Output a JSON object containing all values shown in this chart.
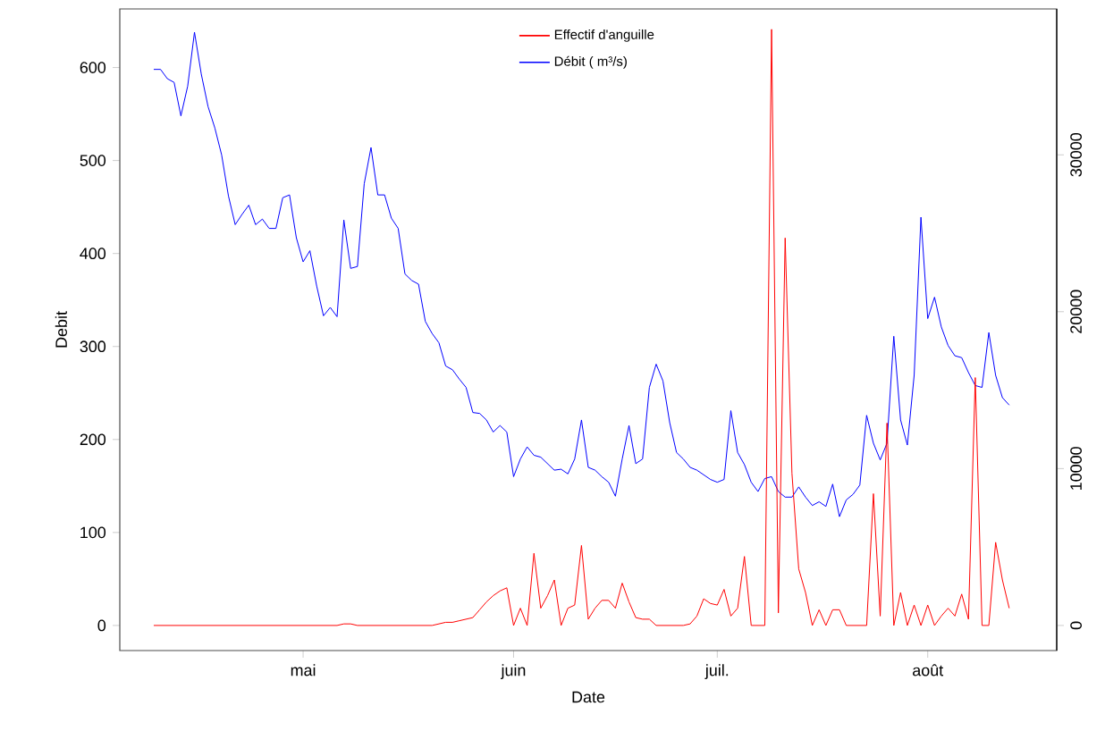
{
  "chart_data": {
    "type": "line",
    "xlabel": "Date",
    "ylabel": "Debit",
    "legend": "top",
    "categories": [
      null,
      null,
      null,
      null,
      null,
      null,
      null,
      null,
      null,
      null,
      null,
      null,
      null,
      null,
      null,
      null,
      null,
      null,
      null,
      null,
      null,
      null,
      "mai",
      null,
      null,
      null,
      null,
      null,
      null,
      null,
      null,
      null,
      null,
      null,
      null,
      null,
      null,
      null,
      null,
      null,
      null,
      null,
      null,
      null,
      null,
      null,
      null,
      null,
      null,
      null,
      null,
      null,
      null,
      "juin",
      null,
      null,
      null,
      null,
      null,
      null,
      null,
      null,
      null,
      null,
      null,
      null,
      null,
      null,
      null,
      null,
      null,
      null,
      null,
      null,
      null,
      null,
      null,
      null,
      null,
      null,
      null,
      null,
      null,
      "juil.",
      null,
      null,
      null,
      null,
      null,
      null,
      null,
      null,
      null,
      null,
      null,
      null,
      null,
      null,
      null,
      null,
      null,
      null,
      null,
      null,
      null,
      null,
      null,
      null,
      null,
      null,
      null,
      null,
      null,
      null,
      "août",
      null,
      null,
      null,
      null,
      null,
      null,
      null,
      null,
      null,
      null,
      null,
      null
    ],
    "series": [
      {
        "name": "Effectif d'anguille",
        "color": "#ff0000",
        "axis": "y2",
        "values": [
          0,
          0,
          0,
          0,
          0,
          0,
          0,
          0,
          0,
          0,
          0,
          0,
          0,
          0,
          0,
          0,
          0,
          0,
          0,
          0,
          0,
          0,
          0,
          0,
          0,
          0,
          0,
          0,
          100,
          100,
          0,
          0,
          0,
          0,
          0,
          0,
          0,
          0,
          0,
          0,
          0,
          0,
          100,
          200,
          200,
          300,
          400,
          500,
          1000,
          1500,
          1900,
          2200,
          2400,
          0,
          1100,
          0,
          4600,
          1100,
          1900,
          2900,
          0,
          1100,
          1300,
          5100,
          400,
          1100,
          1600,
          1600,
          1100,
          2700,
          1500,
          500,
          400,
          400,
          0,
          0,
          0,
          0,
          0,
          100,
          600,
          1700,
          1400,
          1300,
          2300,
          600,
          1100,
          4400,
          0,
          0,
          0,
          38000,
          800,
          24700,
          9700,
          3600,
          2100,
          0,
          1000,
          0,
          1000,
          1000,
          0,
          0,
          0,
          0,
          8400,
          600,
          12900,
          0,
          2100,
          0,
          1300,
          0,
          1300,
          0,
          600,
          1100,
          600,
          2000,
          400,
          15800,
          0,
          0,
          5300,
          2900,
          1100
        ]
      },
      {
        "name": "Débit ( m³/s)",
        "color": "#0000ff",
        "values": [
          598,
          598,
          588,
          584,
          548,
          580,
          638,
          593,
          558,
          535,
          506,
          462,
          431,
          442,
          452,
          431,
          437,
          427,
          427,
          460,
          463,
          417,
          391,
          403,
          365,
          333,
          342,
          332,
          436,
          384,
          386,
          475,
          514,
          463,
          463,
          438,
          427,
          378,
          371,
          367,
          327,
          314,
          304,
          279,
          275,
          265,
          256,
          229,
          228,
          221,
          208,
          215,
          208,
          160,
          179,
          192,
          183,
          181,
          174,
          167,
          168,
          163,
          179,
          221,
          170,
          167,
          160,
          154,
          139,
          179,
          215,
          174,
          179,
          256,
          281,
          263,
          218,
          186,
          179,
          170,
          167,
          162,
          157,
          154,
          157,
          231,
          186,
          173,
          154,
          144,
          158,
          160,
          144,
          138,
          138,
          149,
          138,
          129,
          133,
          128,
          152,
          117,
          135,
          141,
          151,
          226,
          196,
          178,
          196,
          311,
          221,
          194,
          269,
          439,
          330,
          353,
          321,
          301,
          290,
          288,
          272,
          258,
          256,
          315,
          269,
          245,
          237
        ]
      }
    ],
    "ylim": [
      -27,
      663
    ],
    "yticks": [
      0,
      100,
      200,
      300,
      400,
      500,
      600
    ],
    "y2lim": [
      -1600,
      39300
    ],
    "y2ticks": [
      0,
      10000,
      20000,
      30000
    ]
  }
}
